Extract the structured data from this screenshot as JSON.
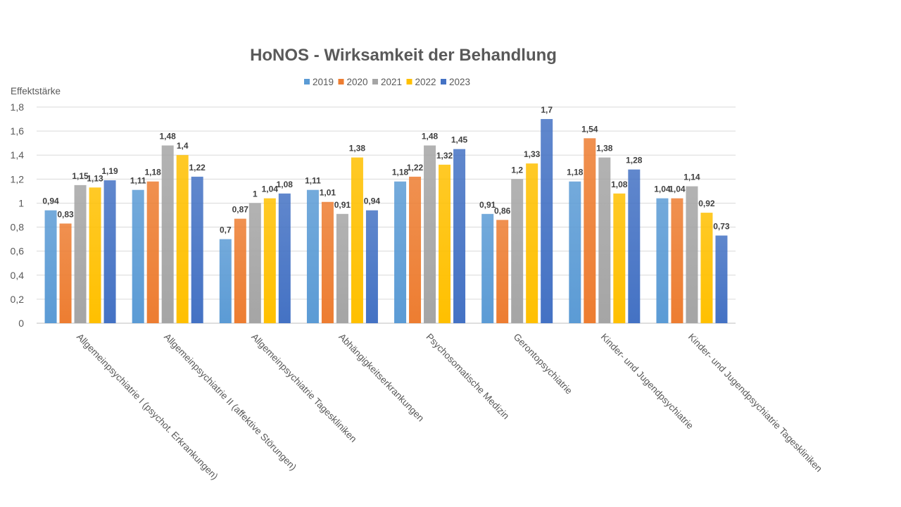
{
  "chart_data": {
    "type": "bar",
    "title": "HoNOS - Wirksamkeit der Behandlung",
    "ylabel": "Effektstärke",
    "xlabel": "",
    "ylim": [
      0,
      1.8
    ],
    "yticks": [
      "0",
      "0,2",
      "0,4",
      "0,6",
      "0,8",
      "1",
      "1,2",
      "1,4",
      "1,6",
      "1,8"
    ],
    "grid": true,
    "legend": "top",
    "categories": [
      "Allgemeinpsychiatrie I (psychot. Erkrankungen)",
      "Allgemeinpsychiatrie II (affektive Störungen)",
      "Allgemeinpsychiatrie Tageskliniken",
      "Abhängigkeitserkrankungen",
      "Psychosomatische Medizin",
      "Gerontopsychiatrie",
      "Kinder- und Jugendpsychiatrie",
      "Kinder- und Jugendpsychiatrie Tageskliniken"
    ],
    "series": [
      {
        "name": "2019",
        "color": "#5b9bd5",
        "values": [
          0.94,
          1.11,
          0.7,
          1.11,
          1.18,
          0.91,
          1.18,
          1.04
        ]
      },
      {
        "name": "2020",
        "color": "#ed7d31",
        "values": [
          0.83,
          1.18,
          0.87,
          1.01,
          1.22,
          0.86,
          1.54,
          1.04
        ]
      },
      {
        "name": "2021",
        "color": "#a5a5a5",
        "values": [
          1.15,
          1.48,
          1,
          0.91,
          1.48,
          1.2,
          1.38,
          1.14
        ]
      },
      {
        "name": "2022",
        "color": "#ffc000",
        "values": [
          1.13,
          1.4,
          1.04,
          1.38,
          1.32,
          1.33,
          1.08,
          0.92
        ]
      },
      {
        "name": "2023",
        "color": "#4472c4",
        "values": [
          1.19,
          1.22,
          1.08,
          0.94,
          1.45,
          1.7,
          1.28,
          0.73
        ]
      }
    ]
  }
}
